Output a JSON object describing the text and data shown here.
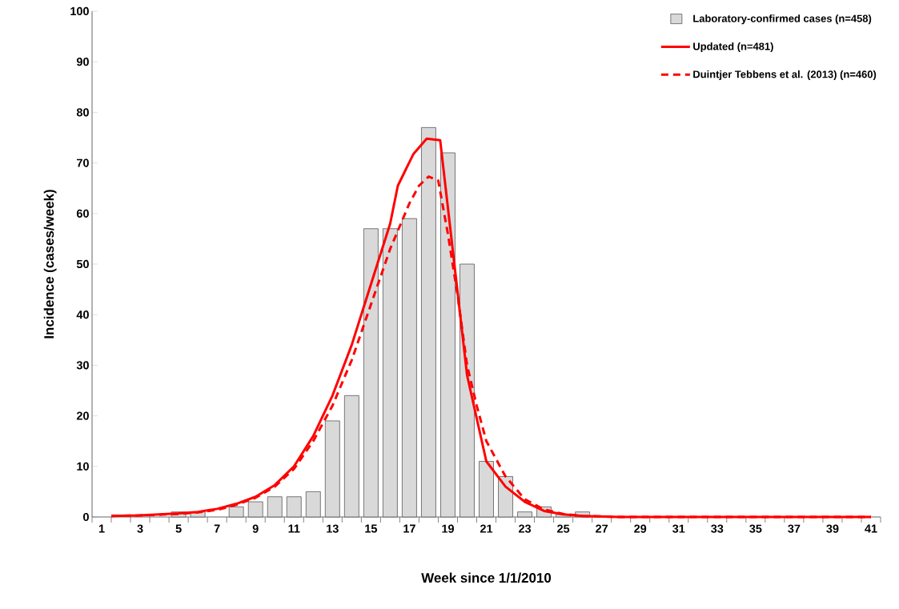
{
  "chart_data": {
    "type": "bar",
    "xlabel": "Week since 1/1/2010",
    "ylabel": "Incidence (cases/week)",
    "x": [
      1,
      2,
      3,
      4,
      5,
      6,
      7,
      8,
      9,
      10,
      11,
      12,
      13,
      14,
      15,
      16,
      17,
      18,
      19,
      20,
      21,
      22,
      23,
      24,
      25,
      26,
      27,
      28,
      29,
      30,
      31,
      32,
      33,
      34,
      35,
      36,
      37,
      38,
      39,
      40,
      41
    ],
    "series": [
      {
        "name": "Laboratory-confirmed cases (n=458)",
        "color": "#d9d9d9",
        "values": [
          0,
          0,
          0,
          0,
          1,
          1,
          0,
          2,
          3,
          4,
          4,
          5,
          19,
          24,
          57,
          57,
          59,
          77,
          72,
          50,
          11,
          8,
          1,
          2,
          0.5,
          1,
          0,
          0,
          0,
          0,
          0,
          0,
          0,
          0,
          0,
          0,
          0,
          0,
          0,
          0,
          0
        ]
      },
      {
        "name": "Updated (n=481)",
        "type": "line",
        "line_style": "solid",
        "color": "#ff0000",
        "x": [
          1.5,
          3,
          5,
          6,
          7,
          8,
          9,
          10,
          11,
          12,
          13,
          14,
          15,
          16,
          16.4,
          17.2,
          17.9,
          18.6,
          20,
          21,
          22,
          23,
          24,
          25,
          26,
          28,
          41
        ],
        "values": [
          0.2,
          0.3,
          0.7,
          1.0,
          1.6,
          2.6,
          4,
          6.3,
          10,
          16,
          24,
          34,
          46,
          58,
          65.5,
          71.7,
          74.8,
          74.5,
          28,
          11,
          6,
          3,
          1.2,
          0.5,
          0.2,
          0,
          0
        ]
      },
      {
        "name": "Duintjer Tebbens et al. (2013) (n=460)",
        "type": "line",
        "line_style": "dashed",
        "color": "#ff0000",
        "x": [
          1.5,
          3,
          5,
          6,
          7,
          8,
          9,
          10,
          11,
          12,
          13,
          14,
          15,
          16,
          17,
          17.5,
          18,
          18.5,
          19,
          19.5,
          20,
          20.5,
          21,
          22,
          23,
          24,
          25,
          26,
          28,
          41
        ],
        "values": [
          0.2,
          0.3,
          0.6,
          0.9,
          1.4,
          2.4,
          3.8,
          6,
          9.5,
          15,
          22,
          31,
          42,
          53,
          62,
          65.5,
          67.3,
          66.5,
          56,
          44,
          30,
          22,
          15,
          8,
          3.5,
          1.5,
          0.6,
          0.2,
          0,
          0
        ]
      }
    ],
    "xlim": [
      0.5,
      41.5
    ],
    "xticks": [
      {
        "value": 1,
        "label": "1"
      },
      {
        "value": 3,
        "label": "3"
      },
      {
        "value": 5,
        "label": "5"
      },
      {
        "value": 7,
        "label": "7"
      },
      {
        "value": 9,
        "label": "9"
      },
      {
        "value": 11,
        "label": "11"
      },
      {
        "value": 13,
        "label": "13"
      },
      {
        "value": 15,
        "label": "15"
      },
      {
        "value": 17,
        "label": "17"
      },
      {
        "value": 19,
        "label": "19"
      },
      {
        "value": 21,
        "label": "21"
      },
      {
        "value": 23,
        "label": "23"
      },
      {
        "value": 25,
        "label": "25"
      },
      {
        "value": 27,
        "label": "27"
      },
      {
        "value": 29,
        "label": "29"
      },
      {
        "value": 31,
        "label": "31"
      },
      {
        "value": 33,
        "label": "33"
      },
      {
        "value": 35,
        "label": "35"
      },
      {
        "value": 37,
        "label": "37"
      },
      {
        "value": 39,
        "label": "39"
      },
      {
        "value": 41,
        "label": "41"
      },
      {
        "value": 0.5,
        "label": null
      },
      {
        "value": 1.5,
        "label": null
      },
      {
        "value": 2.5,
        "label": null
      },
      {
        "value": 3.5,
        "label": null
      },
      {
        "value": 4.5,
        "label": null
      },
      {
        "value": 5.5,
        "label": null
      },
      {
        "value": 6.5,
        "label": null
      },
      {
        "value": 7.5,
        "label": null
      },
      {
        "value": 8.5,
        "label": null
      },
      {
        "value": 9.5,
        "label": null
      },
      {
        "value": 10.5,
        "label": null
      },
      {
        "value": 11.5,
        "label": null
      },
      {
        "value": 12.5,
        "label": null
      },
      {
        "value": 13.5,
        "label": null
      },
      {
        "value": 14.5,
        "label": null
      },
      {
        "value": 15.5,
        "label": null
      },
      {
        "value": 16.5,
        "label": null
      },
      {
        "value": 17.5,
        "label": null
      },
      {
        "value": 18.5,
        "label": null
      },
      {
        "value": 19.5,
        "label": null
      },
      {
        "value": 20.5,
        "label": null
      },
      {
        "value": 21.5,
        "label": null
      },
      {
        "value": 22.5,
        "label": null
      },
      {
        "value": 23.5,
        "label": null
      },
      {
        "value": 24.5,
        "label": null
      },
      {
        "value": 25.5,
        "label": null
      },
      {
        "value": 26.5,
        "label": null
      },
      {
        "value": 27.5,
        "label": null
      },
      {
        "value": 28.5,
        "label": null
      },
      {
        "value": 29.5,
        "label": null
      },
      {
        "value": 30.5,
        "label": null
      },
      {
        "value": 31.5,
        "label": null
      },
      {
        "value": 32.5,
        "label": null
      },
      {
        "value": 33.5,
        "label": null
      },
      {
        "value": 34.5,
        "label": null
      },
      {
        "value": 35.5,
        "label": null
      },
      {
        "value": 36.5,
        "label": null
      },
      {
        "value": 37.5,
        "label": null
      },
      {
        "value": 38.5,
        "label": null
      },
      {
        "value": 39.5,
        "label": null
      },
      {
        "value": 40.5,
        "label": null
      },
      {
        "value": 41.5,
        "label": null
      }
    ],
    "ylim": [
      0,
      100
    ],
    "yticks": [
      0,
      10,
      20,
      30,
      40,
      50,
      60,
      70,
      80,
      90,
      100
    ],
    "grid": false,
    "legend": "top right",
    "marker": "none"
  }
}
